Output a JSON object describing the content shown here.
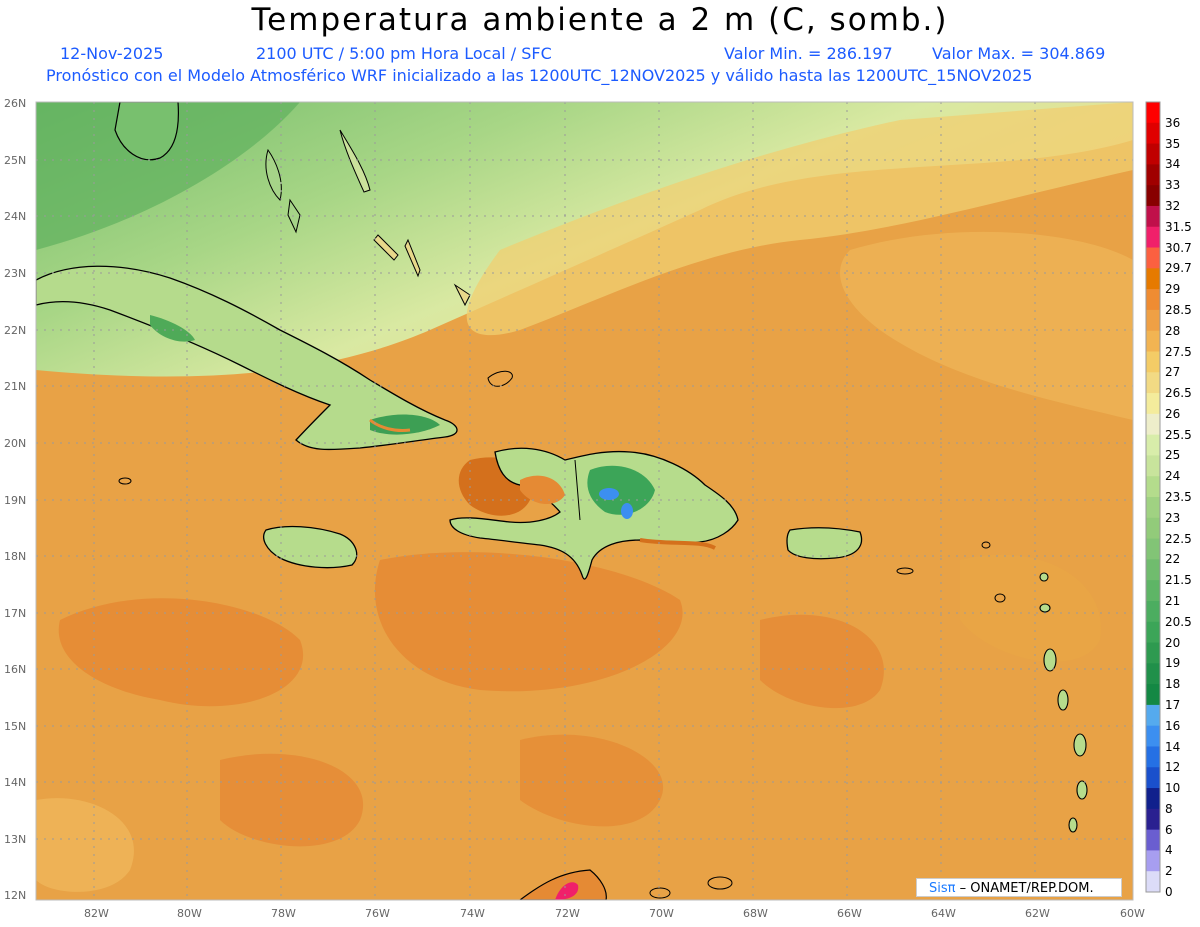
{
  "header": {
    "title": "Temperatura ambiente a 2 m (C, somb.)",
    "date": "12-Nov-2025",
    "time": "2100 UTC / 5:00 pm Hora Local / SFC",
    "min_label": "Valor Min. = 286.197",
    "max_label": "Valor Max. = 304.869",
    "model_info": "Pronóstico con el Modelo Atmosférico WRF inicializado a las 1200UTC_12NOV2025 y válido hasta las  1200UTC_15NOV2025"
  },
  "map": {
    "lat_labels": [
      "26N",
      "25N",
      "24N",
      "23N",
      "22N",
      "21N",
      "20N",
      "19N",
      "18N",
      "17N",
      "16N",
      "15N",
      "14N",
      "13N",
      "12N"
    ],
    "lon_labels": [
      "82W",
      "80W",
      "78W",
      "76W",
      "74W",
      "72W",
      "70W",
      "68W",
      "66W",
      "64W",
      "62W",
      "60W"
    ],
    "colors": {
      "warm_sea": "#e9a545",
      "hot_sea": "#e58a34",
      "cool_north": "#f2dc86",
      "land_green": "#b8dd8a",
      "mountain_green": "#5fb760"
    }
  },
  "legend": {
    "labels": [
      "36",
      "35",
      "34",
      "33",
      "32",
      "31.5",
      "30.7",
      "29.7",
      "29",
      "28.5",
      "28",
      "27.5",
      "27",
      "26.5",
      "26",
      "25.5",
      "25",
      "24",
      "23.5",
      "23",
      "22.5",
      "22",
      "21.5",
      "21",
      "20.5",
      "20",
      "19",
      "18",
      "17",
      "16",
      "14",
      "12",
      "10",
      "8",
      "6",
      "4",
      "2",
      "0"
    ],
    "colors": [
      "#ff0000",
      "#e00000",
      "#c00000",
      "#a00000",
      "#880000",
      "#c0104a",
      "#f0206a",
      "#fb6040",
      "#e67a00",
      "#ef8c32",
      "#efa045",
      "#f2b452",
      "#f4cc66",
      "#f2da84",
      "#f4ec9c",
      "#eeeeca",
      "#d8edaa",
      "#c8e49c",
      "#b4dc8c",
      "#a0d282",
      "#92cb7a",
      "#82c476",
      "#70bc6e",
      "#5eb566",
      "#4cad60",
      "#3ca558",
      "#2e9a50",
      "#20904a",
      "#148844",
      "#55aaee",
      "#3c8ff0",
      "#2570e4",
      "#1a50cc",
      "#10208c",
      "#2a2090",
      "#6a5ed0",
      "#a79ef0",
      "#dcdcf8"
    ]
  },
  "credit": {
    "logo": "Sisπ",
    "text": " – ONAMET/REP.DOM."
  }
}
